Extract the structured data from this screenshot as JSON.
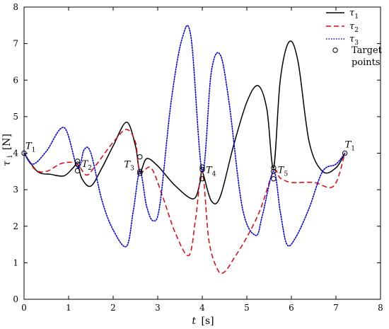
{
  "chart_data": {
    "type": "line",
    "xlabel_var": "t",
    "xlabel_unit": "[s]",
    "ylabel_var": "τ",
    "ylabel_sub": "i",
    "ylabel_unit": "[N]",
    "xlim": [
      0,
      8
    ],
    "ylim": [
      0,
      8
    ],
    "xticks": [
      0,
      1,
      2,
      3,
      4,
      5,
      6,
      7,
      8
    ],
    "yticks": [
      0,
      1,
      2,
      3,
      4,
      5,
      6,
      7,
      8
    ],
    "grid": false,
    "legend_position": "top-right",
    "series": [
      {
        "name": "τ",
        "name_sub": "1",
        "color": "#000000",
        "dash": "solid",
        "x": [
          0,
          0.3,
          0.6,
          0.9,
          1.1,
          1.2,
          1.3,
          1.5,
          1.75,
          2.0,
          2.3,
          2.5,
          2.6,
          2.75,
          3.0,
          3.4,
          3.8,
          3.95,
          4.0,
          4.2,
          4.4,
          4.7,
          5.0,
          5.25,
          5.45,
          5.6,
          5.75,
          5.95,
          6.15,
          6.4,
          6.7,
          7.0,
          7.2
        ],
        "y": [
          4.0,
          3.5,
          3.42,
          3.38,
          3.6,
          3.7,
          3.3,
          3.1,
          3.6,
          4.2,
          4.85,
          4.2,
          3.5,
          3.85,
          3.65,
          3.1,
          2.75,
          3.2,
          3.5,
          2.7,
          2.8,
          4.2,
          5.4,
          5.85,
          5.2,
          3.6,
          6.0,
          7.05,
          6.5,
          4.3,
          3.5,
          3.6,
          4.0
        ]
      },
      {
        "name": "τ",
        "name_sub": "2",
        "color": "#e8000b",
        "dash": "dashed",
        "x": [
          0,
          0.25,
          0.5,
          0.8,
          1.0,
          1.2,
          1.4,
          1.6,
          2.0,
          2.3,
          2.5,
          2.6,
          2.85,
          3.1,
          3.4,
          3.7,
          3.85,
          4.0,
          4.15,
          4.35,
          4.5,
          4.7,
          5.0,
          5.3,
          5.6,
          5.75,
          6.0,
          6.5,
          6.95,
          7.2
        ],
        "y": [
          4.0,
          3.55,
          3.5,
          3.7,
          3.75,
          3.7,
          3.4,
          3.65,
          4.3,
          4.65,
          4.3,
          3.5,
          3.6,
          2.85,
          1.8,
          1.2,
          2.2,
          3.5,
          1.6,
          0.8,
          0.75,
          1.1,
          1.7,
          2.45,
          3.5,
          3.32,
          3.2,
          3.2,
          3.1,
          4.0
        ]
      },
      {
        "name": "τ",
        "name_sub": "3",
        "color": "#0000ee",
        "dash": "dotted",
        "x": [
          0,
          0.2,
          0.5,
          0.9,
          1.2,
          1.35,
          1.5,
          1.75,
          2.0,
          2.3,
          2.45,
          2.6,
          2.75,
          2.9,
          3.05,
          3.3,
          3.55,
          3.75,
          4.0,
          4.2,
          4.4,
          4.6,
          4.9,
          5.2,
          5.35,
          5.6,
          5.75,
          5.9,
          6.1,
          6.4,
          6.7,
          7.0,
          7.2
        ],
        "y": [
          4.0,
          3.7,
          4.05,
          4.7,
          3.6,
          4.1,
          4.0,
          2.7,
          1.9,
          1.45,
          2.4,
          3.5,
          2.55,
          2.15,
          2.6,
          5.4,
          7.15,
          7.15,
          3.5,
          6.2,
          6.7,
          5.4,
          2.5,
          1.75,
          2.3,
          3.5,
          2.4,
          1.5,
          1.7,
          2.5,
          3.5,
          3.7,
          4.0
        ]
      }
    ],
    "target_legend_label": [
      "Target",
      "points"
    ],
    "target_points": [
      {
        "x": 0,
        "y": 4.0
      },
      {
        "x": 1.2,
        "y": 3.78
      },
      {
        "x": 1.2,
        "y": 3.7
      },
      {
        "x": 1.2,
        "y": 3.52
      },
      {
        "x": 2.6,
        "y": 3.9
      },
      {
        "x": 2.6,
        "y": 3.5
      },
      {
        "x": 2.6,
        "y": 3.45
      },
      {
        "x": 4.0,
        "y": 3.62
      },
      {
        "x": 4.0,
        "y": 3.55
      },
      {
        "x": 4.0,
        "y": 3.3
      },
      {
        "x": 5.6,
        "y": 3.6
      },
      {
        "x": 5.6,
        "y": 3.5
      },
      {
        "x": 5.6,
        "y": 3.3
      },
      {
        "x": 7.2,
        "y": 4.0
      }
    ],
    "point_labels": [
      {
        "letter": "T",
        "sub": "1",
        "x": 0,
        "y": 4.0
      },
      {
        "letter": "T",
        "sub": "2",
        "x": 1.2,
        "y": 3.7
      },
      {
        "letter": "T",
        "sub": "3",
        "x": 2.6,
        "y": 3.5
      },
      {
        "letter": "T",
        "sub": "4",
        "x": 4.0,
        "y": 3.5
      },
      {
        "letter": "T",
        "sub": "5",
        "x": 5.6,
        "y": 3.5
      },
      {
        "letter": "T",
        "sub": "1",
        "x": 7.2,
        "y": 4.0
      }
    ]
  }
}
